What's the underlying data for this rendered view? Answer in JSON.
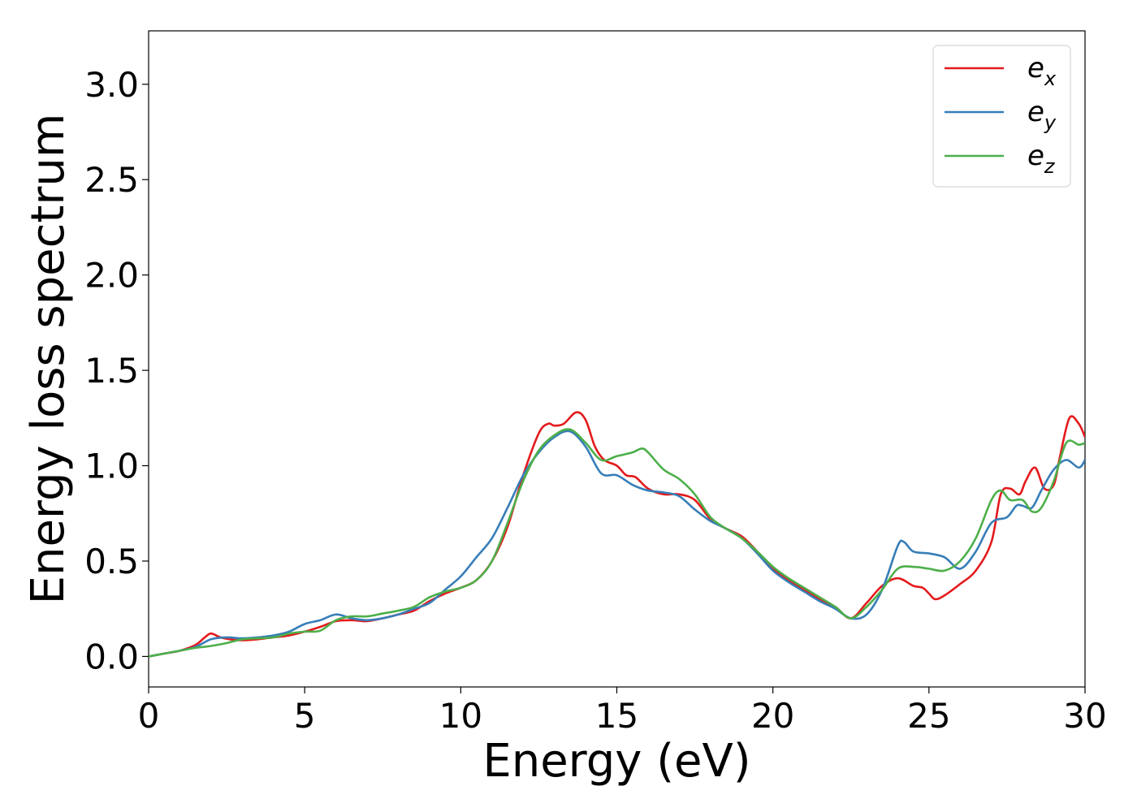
{
  "chart_data": {
    "type": "line",
    "xlabel": "Energy (eV)",
    "ylabel": "Energy loss spectrum",
    "xlim": [
      0,
      30
    ],
    "ylim": [
      -0.16,
      3.28
    ],
    "xticks": [
      "0",
      "5",
      "10",
      "15",
      "20",
      "25",
      "30"
    ],
    "yticks": [
      "0.0",
      "0.5",
      "1.0",
      "1.5",
      "2.0",
      "2.5",
      "3.0"
    ],
    "grid": false,
    "legend_position": "top-right",
    "series": [
      {
        "name": "e",
        "subscript": "x",
        "color": "#e41a1c",
        "x": [
          0,
          0.5,
          1,
          1.5,
          1.8,
          2,
          2.3,
          2.6,
          3,
          3.5,
          4,
          4.5,
          5,
          5.5,
          6,
          6.5,
          7,
          7.5,
          8,
          8.5,
          9,
          9.5,
          10,
          10.5,
          11,
          11.5,
          12,
          12.5,
          12.8,
          13,
          13.3,
          13.7,
          14,
          14.3,
          14.6,
          15,
          15.3,
          15.6,
          16,
          16.5,
          17,
          17.5,
          18,
          18.5,
          19,
          19.5,
          20,
          20.5,
          21,
          21.5,
          22,
          22.5,
          23,
          23.5,
          24,
          24.5,
          24.8,
          25,
          25.2,
          25.5,
          26,
          26.5,
          27,
          27.3,
          27.6,
          27.9,
          28.1,
          28.4,
          28.7,
          29,
          29.2,
          29.5,
          29.8,
          30
        ],
        "y": [
          0,
          0.015,
          0.03,
          0.06,
          0.1,
          0.12,
          0.1,
          0.09,
          0.085,
          0.09,
          0.1,
          0.11,
          0.13,
          0.155,
          0.185,
          0.19,
          0.185,
          0.2,
          0.22,
          0.24,
          0.29,
          0.33,
          0.36,
          0.4,
          0.5,
          0.68,
          0.95,
          1.17,
          1.22,
          1.21,
          1.22,
          1.28,
          1.24,
          1.1,
          1.03,
          1.0,
          0.95,
          0.94,
          0.88,
          0.85,
          0.85,
          0.82,
          0.72,
          0.67,
          0.63,
          0.55,
          0.46,
          0.4,
          0.35,
          0.3,
          0.26,
          0.2,
          0.28,
          0.37,
          0.41,
          0.37,
          0.36,
          0.33,
          0.3,
          0.32,
          0.38,
          0.45,
          0.6,
          0.85,
          0.88,
          0.85,
          0.92,
          0.99,
          0.88,
          0.9,
          1.05,
          1.25,
          1.22,
          1.15
        ]
      },
      {
        "name": "e",
        "subscript": "y",
        "color": "#377eb8",
        "x": [
          0,
          0.5,
          1,
          1.5,
          2,
          2.5,
          3,
          3.5,
          4,
          4.5,
          5,
          5.5,
          6,
          6.5,
          7,
          7.5,
          8,
          8.5,
          9,
          9.5,
          10,
          10.5,
          11,
          11.5,
          12,
          12.5,
          13,
          13.5,
          14,
          14.5,
          15,
          15.5,
          16,
          16.5,
          17,
          17.5,
          18,
          18.5,
          19,
          19.5,
          20,
          20.5,
          21,
          21.5,
          22,
          22.5,
          23,
          23.5,
          24,
          24.2,
          24.5,
          25,
          25.5,
          26,
          26.5,
          27,
          27.5,
          27.8,
          28,
          28.3,
          28.6,
          29,
          29.4,
          29.8,
          30
        ],
        "y": [
          0,
          0.015,
          0.03,
          0.05,
          0.09,
          0.1,
          0.095,
          0.1,
          0.11,
          0.13,
          0.17,
          0.19,
          0.22,
          0.2,
          0.19,
          0.2,
          0.22,
          0.25,
          0.28,
          0.35,
          0.42,
          0.52,
          0.62,
          0.78,
          0.95,
          1.07,
          1.15,
          1.18,
          1.1,
          0.96,
          0.95,
          0.9,
          0.87,
          0.86,
          0.84,
          0.77,
          0.71,
          0.67,
          0.62,
          0.54,
          0.45,
          0.39,
          0.34,
          0.29,
          0.25,
          0.2,
          0.22,
          0.35,
          0.58,
          0.6,
          0.55,
          0.54,
          0.52,
          0.46,
          0.55,
          0.7,
          0.73,
          0.79,
          0.79,
          0.78,
          0.87,
          0.98,
          1.03,
          0.99,
          1.03
        ]
      },
      {
        "name": "e",
        "subscript": "z",
        "color": "#4daf4a",
        "x": [
          0,
          0.5,
          1,
          1.5,
          2,
          2.5,
          3,
          3.5,
          4,
          4.5,
          5,
          5.5,
          6,
          6.5,
          7,
          7.5,
          8,
          8.5,
          9,
          9.5,
          10,
          10.5,
          11,
          11.5,
          12,
          12.5,
          13,
          13.5,
          14,
          14.5,
          15,
          15.5,
          15.8,
          16,
          16.5,
          17,
          17.5,
          18,
          18.5,
          19,
          19.5,
          20,
          20.5,
          21,
          21.5,
          22,
          22.5,
          23,
          23.5,
          24,
          24.5,
          25,
          25.5,
          26,
          26.5,
          27,
          27.3,
          27.6,
          28,
          28.3,
          28.6,
          29,
          29.4,
          29.8,
          30
        ],
        "y": [
          0,
          0.015,
          0.03,
          0.045,
          0.055,
          0.07,
          0.09,
          0.095,
          0.1,
          0.12,
          0.13,
          0.135,
          0.19,
          0.21,
          0.21,
          0.225,
          0.24,
          0.26,
          0.31,
          0.34,
          0.36,
          0.4,
          0.5,
          0.7,
          0.92,
          1.08,
          1.16,
          1.19,
          1.12,
          1.03,
          1.05,
          1.07,
          1.09,
          1.07,
          0.98,
          0.93,
          0.85,
          0.73,
          0.67,
          0.62,
          0.55,
          0.47,
          0.41,
          0.36,
          0.31,
          0.26,
          0.2,
          0.26,
          0.35,
          0.46,
          0.47,
          0.46,
          0.45,
          0.5,
          0.62,
          0.82,
          0.87,
          0.82,
          0.82,
          0.76,
          0.78,
          0.92,
          1.12,
          1.11,
          1.12
        ]
      }
    ]
  }
}
